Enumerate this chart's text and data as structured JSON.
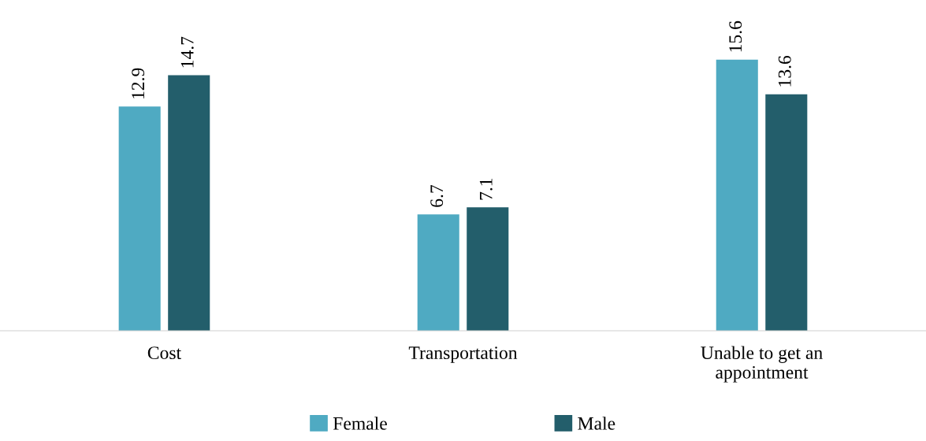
{
  "chart_data": {
    "type": "bar",
    "categories": [
      "Cost",
      "Transportation",
      "Unable to get an\nappointment"
    ],
    "series": [
      {
        "name": "Female",
        "color": "#4faac2",
        "values": [
          12.9,
          6.7,
          15.6
        ]
      },
      {
        "name": "Male",
        "color": "#235e6b",
        "values": [
          14.7,
          7.1,
          13.6
        ]
      }
    ],
    "data_labels": true,
    "legend": "bottom",
    "grid": false
  }
}
